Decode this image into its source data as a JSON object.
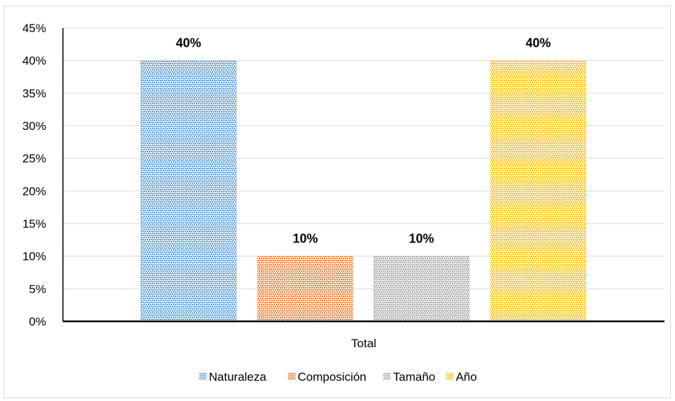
{
  "chart_data": {
    "type": "bar",
    "title": "",
    "xlabel": "",
    "ylabel": "",
    "x_category_label": "Total",
    "ylim": [
      0,
      0.45
    ],
    "y_ticks": [
      0,
      0.05,
      0.1,
      0.15,
      0.2,
      0.25,
      0.3,
      0.35,
      0.4,
      0.45
    ],
    "y_tick_labels": [
      "0%",
      "5%",
      "10%",
      "15%",
      "20%",
      "25%",
      "30%",
      "35%",
      "40%",
      "45%"
    ],
    "grid": "horizontal",
    "legend_position": "bottom",
    "series": [
      {
        "name": "Naturaleza",
        "value": 0.4,
        "label": "40%",
        "color": "#5b9bd5"
      },
      {
        "name": "Composición",
        "value": 0.1,
        "label": "10%",
        "color": "#ed7d31"
      },
      {
        "name": "Tamaño",
        "value": 0.1,
        "label": "10%",
        "color": "#a5a5a5"
      },
      {
        "name": "Año",
        "value": 0.4,
        "label": "40%",
        "color": "#ffc000"
      }
    ],
    "pattern": "dotted-crosshatch"
  }
}
